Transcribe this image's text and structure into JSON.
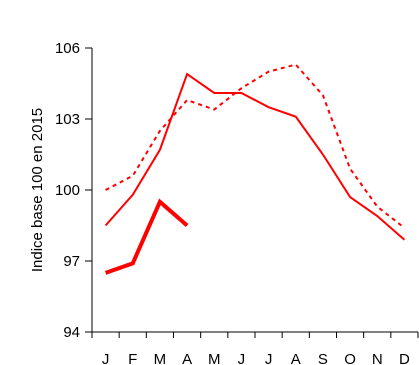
{
  "chart_data": {
    "type": "line",
    "title": "",
    "xlabel": "",
    "ylabel": "Indice base 100 en 2015",
    "categories": [
      "J",
      "F",
      "M",
      "A",
      "M",
      "J",
      "J",
      "A",
      "S",
      "O",
      "N",
      "D"
    ],
    "ylim": [
      94,
      106
    ],
    "yticks": [
      94,
      97,
      100,
      103,
      106
    ],
    "grid": false,
    "legend": "none",
    "series": [
      {
        "style": "solid",
        "color": "#ff0000",
        "weight": "normal",
        "values": [
          98.5,
          99.8,
          101.7,
          104.9,
          104.1,
          104.1,
          103.5,
          103.1,
          101.5,
          99.7,
          98.9,
          97.9
        ]
      },
      {
        "style": "dashed",
        "color": "#ff0000",
        "weight": "normal",
        "values": [
          100.0,
          100.6,
          102.5,
          103.8,
          103.4,
          104.3,
          105.0,
          105.3,
          104.0,
          100.9,
          99.3,
          98.4
        ]
      },
      {
        "style": "solid",
        "color": "#ff0000",
        "weight": "bold",
        "values": [
          96.5,
          96.9,
          99.5,
          98.5,
          null,
          null,
          null,
          null,
          null,
          null,
          null,
          null
        ]
      }
    ]
  }
}
